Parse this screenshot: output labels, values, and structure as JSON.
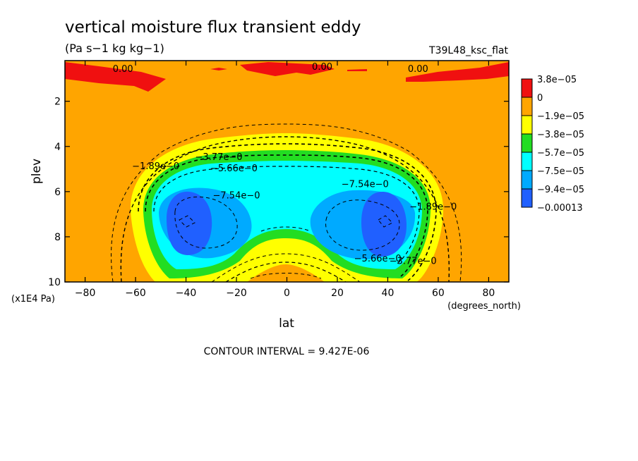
{
  "chart_data": {
    "type": "heatmap",
    "title": "vertical moisture flux transient eddy",
    "units": "(Pa s−1 kg kg−1)",
    "run_label": "T39L48_ksc_flat",
    "xlabel": "lat",
    "xunit": "(degrees_north)",
    "ylabel": "plev",
    "yunit": "(x1E4 Pa)",
    "x_range": [
      -88,
      88
    ],
    "y_range": [
      0.2,
      10
    ],
    "y_inverted": true,
    "x_ticks": [
      -80,
      -60,
      -40,
      -20,
      0,
      20,
      40,
      60,
      80
    ],
    "x_tick_labels": [
      "−80",
      "−60",
      "−40",
      "−20",
      "0",
      "20",
      "40",
      "60",
      "80"
    ],
    "y_ticks": [
      2,
      4,
      6,
      8,
      10
    ],
    "y_tick_labels": [
      "2",
      "4",
      "6",
      "8",
      "10"
    ],
    "contour_interval_text": "CONTOUR INTERVAL = 9.427E-06",
    "legend": [
      {
        "label": "3.8e−05",
        "color": "#f01010"
      },
      {
        "label": "0",
        "color": "#ffa500"
      },
      {
        "label": "−1.9e−05",
        "color": "#ffff00"
      },
      {
        "label": "−3.8e−05",
        "color": "#22dd22"
      },
      {
        "label": "−5.7e−05",
        "color": "#00ffff"
      },
      {
        "label": "−7.5e−05",
        "color": "#00aaff"
      },
      {
        "label": "−9.4e−05",
        "color": "#2060ff"
      },
      {
        "label": "−0.00013",
        "color": "#ffffff"
      }
    ],
    "contour_labels": [
      {
        "text": "0.00",
        "x": -65,
        "y": 0.7
      },
      {
        "text": "0.00",
        "x": 14,
        "y": 0.6
      },
      {
        "text": "0.00",
        "x": 52,
        "y": 0.7
      },
      {
        "text": "−1.89e−0",
        "x": -52,
        "y": 5.0
      },
      {
        "text": "−3.77e−0",
        "x": -27,
        "y": 4.6
      },
      {
        "text": "−5.66e−0",
        "x": -21,
        "y": 5.1
      },
      {
        "text": "−7.54e−0",
        "x": -20,
        "y": 6.3
      },
      {
        "text": "−7.54e−0",
        "x": 31,
        "y": 5.8
      },
      {
        "text": "−1.89e−0",
        "x": 58,
        "y": 6.8
      },
      {
        "text": "−5.66e−0",
        "x": 36,
        "y": 9.1
      },
      {
        "text": "−3.77e−0",
        "x": 50,
        "y": 9.2
      }
    ]
  }
}
